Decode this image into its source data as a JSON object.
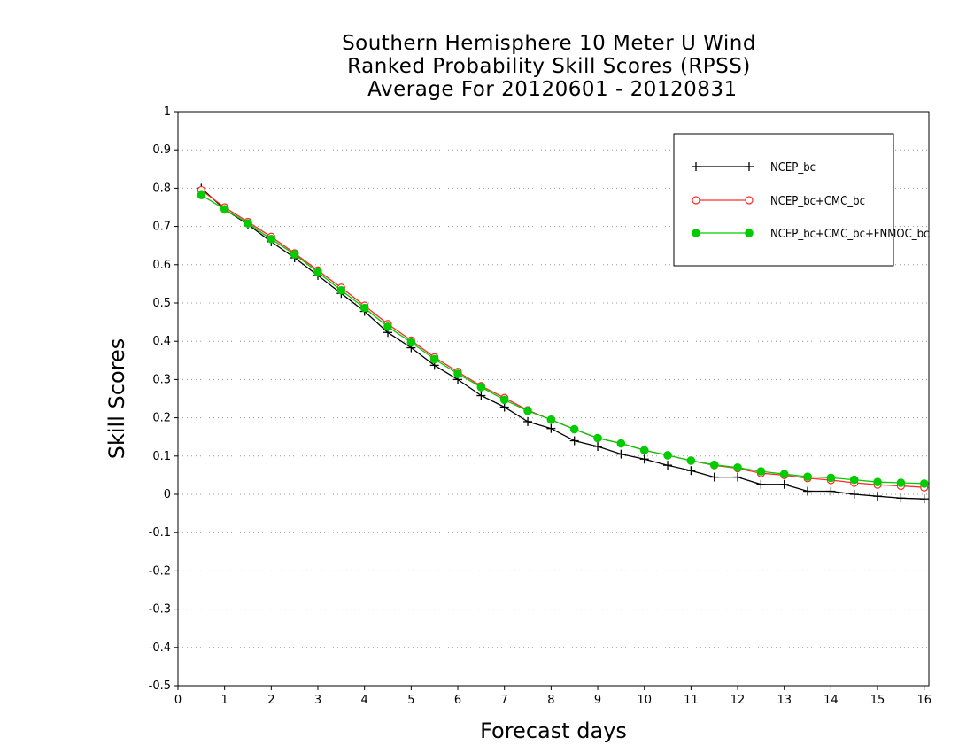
{
  "chart_data": {
    "type": "line",
    "title": [
      "Southern Hemisphere 10 Meter U Wind",
      "Ranked Probability Skill Scores (RPSS)",
      " Average For 20120601 - 20120831"
    ],
    "xlabel": "Forecast days",
    "ylabel": "Skill Scores",
    "xlim": [
      0,
      16.1
    ],
    "ylim": [
      -0.5,
      1
    ],
    "xticks": [
      "0",
      "1",
      "2",
      "3",
      "4",
      "5",
      "6",
      "7",
      "8",
      "9",
      "10",
      "11",
      "12",
      "13",
      "14",
      "15",
      "16"
    ],
    "yticks": [
      "-0.5",
      "-0.4",
      "-0.3",
      "-0.2",
      "-0.1",
      "0",
      "0.1",
      "0.2",
      "0.3",
      "0.4",
      "0.5",
      "0.6",
      "0.7",
      "0.8",
      "0.9",
      "1"
    ],
    "grid": "horizontal dotted",
    "legend_position": "top-right",
    "x": [
      0.5,
      1,
      1.5,
      2,
      2.5,
      3,
      3.5,
      4,
      4.5,
      5,
      5.5,
      6,
      6.5,
      7,
      7.5,
      8,
      8.5,
      9,
      9.5,
      10,
      10.5,
      11,
      11.5,
      12,
      12.5,
      13,
      13.5,
      14,
      14.5,
      15,
      15.5,
      16
    ],
    "series": [
      {
        "name": "NCEP_bc",
        "color": "#000000",
        "marker": "plus",
        "values": [
          0.8,
          0.745,
          0.705,
          0.66,
          0.618,
          0.572,
          0.525,
          0.478,
          0.423,
          0.383,
          0.337,
          0.3,
          0.258,
          0.228,
          0.19,
          0.172,
          0.14,
          0.125,
          0.105,
          0.092,
          0.076,
          0.062,
          0.045,
          0.045,
          0.026,
          0.026,
          0.008,
          0.008,
          0.0,
          -0.005,
          -0.01,
          -0.012
        ]
      },
      {
        "name": "NCEP_bc+CMC_bc",
        "color": "#ff2a2a",
        "marker": "open-circle",
        "values": [
          0.795,
          0.75,
          0.712,
          0.673,
          0.63,
          0.585,
          0.54,
          0.493,
          0.445,
          0.402,
          0.358,
          0.32,
          0.283,
          0.252,
          0.22,
          0.195,
          0.17,
          0.147,
          0.133,
          0.115,
          0.102,
          0.088,
          0.076,
          0.068,
          0.055,
          0.05,
          0.042,
          0.037,
          0.03,
          0.025,
          0.022,
          0.018
        ]
      },
      {
        "name": "NCEP_bc+CMC_bc+FNMOC_bc",
        "color": "#00cc00",
        "marker": "filled-circle",
        "values": [
          0.782,
          0.745,
          0.708,
          0.667,
          0.627,
          0.58,
          0.533,
          0.487,
          0.438,
          0.397,
          0.353,
          0.315,
          0.28,
          0.247,
          0.218,
          0.195,
          0.17,
          0.147,
          0.133,
          0.115,
          0.102,
          0.088,
          0.077,
          0.07,
          0.06,
          0.053,
          0.046,
          0.043,
          0.038,
          0.032,
          0.03,
          0.028
        ]
      }
    ]
  }
}
